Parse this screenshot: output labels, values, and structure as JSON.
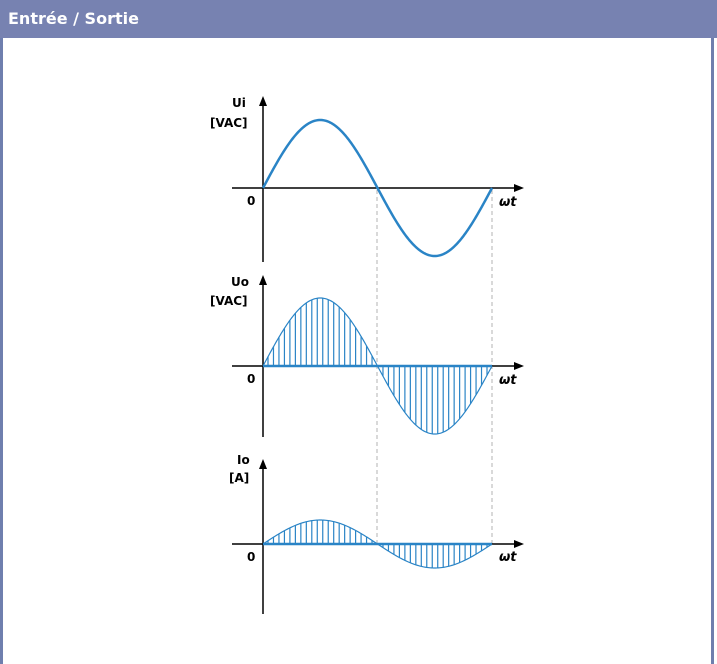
{
  "header": {
    "title": "Entrée / Sortie"
  },
  "colors": {
    "header_bg": "#7782b1",
    "wave": "#2a84c6",
    "axis": "#000000",
    "guide": "#b3b3b3"
  },
  "plots": [
    {
      "id": "ui",
      "label_line1": "Ui",
      "label_line2": "[VAC]",
      "origin": "0",
      "time_label": "ωt",
      "style": "line"
    },
    {
      "id": "uo",
      "label_line1": "Uo",
      "label_line2": "[VAC]",
      "origin": "0",
      "time_label": "ωt",
      "style": "bars",
      "amplitude_ratio": 1.0
    },
    {
      "id": "io",
      "label_line1": "Io",
      "label_line2": "[A]",
      "origin": "0",
      "time_label": "ωt",
      "style": "bars",
      "amplitude_ratio": 0.4
    }
  ]
}
